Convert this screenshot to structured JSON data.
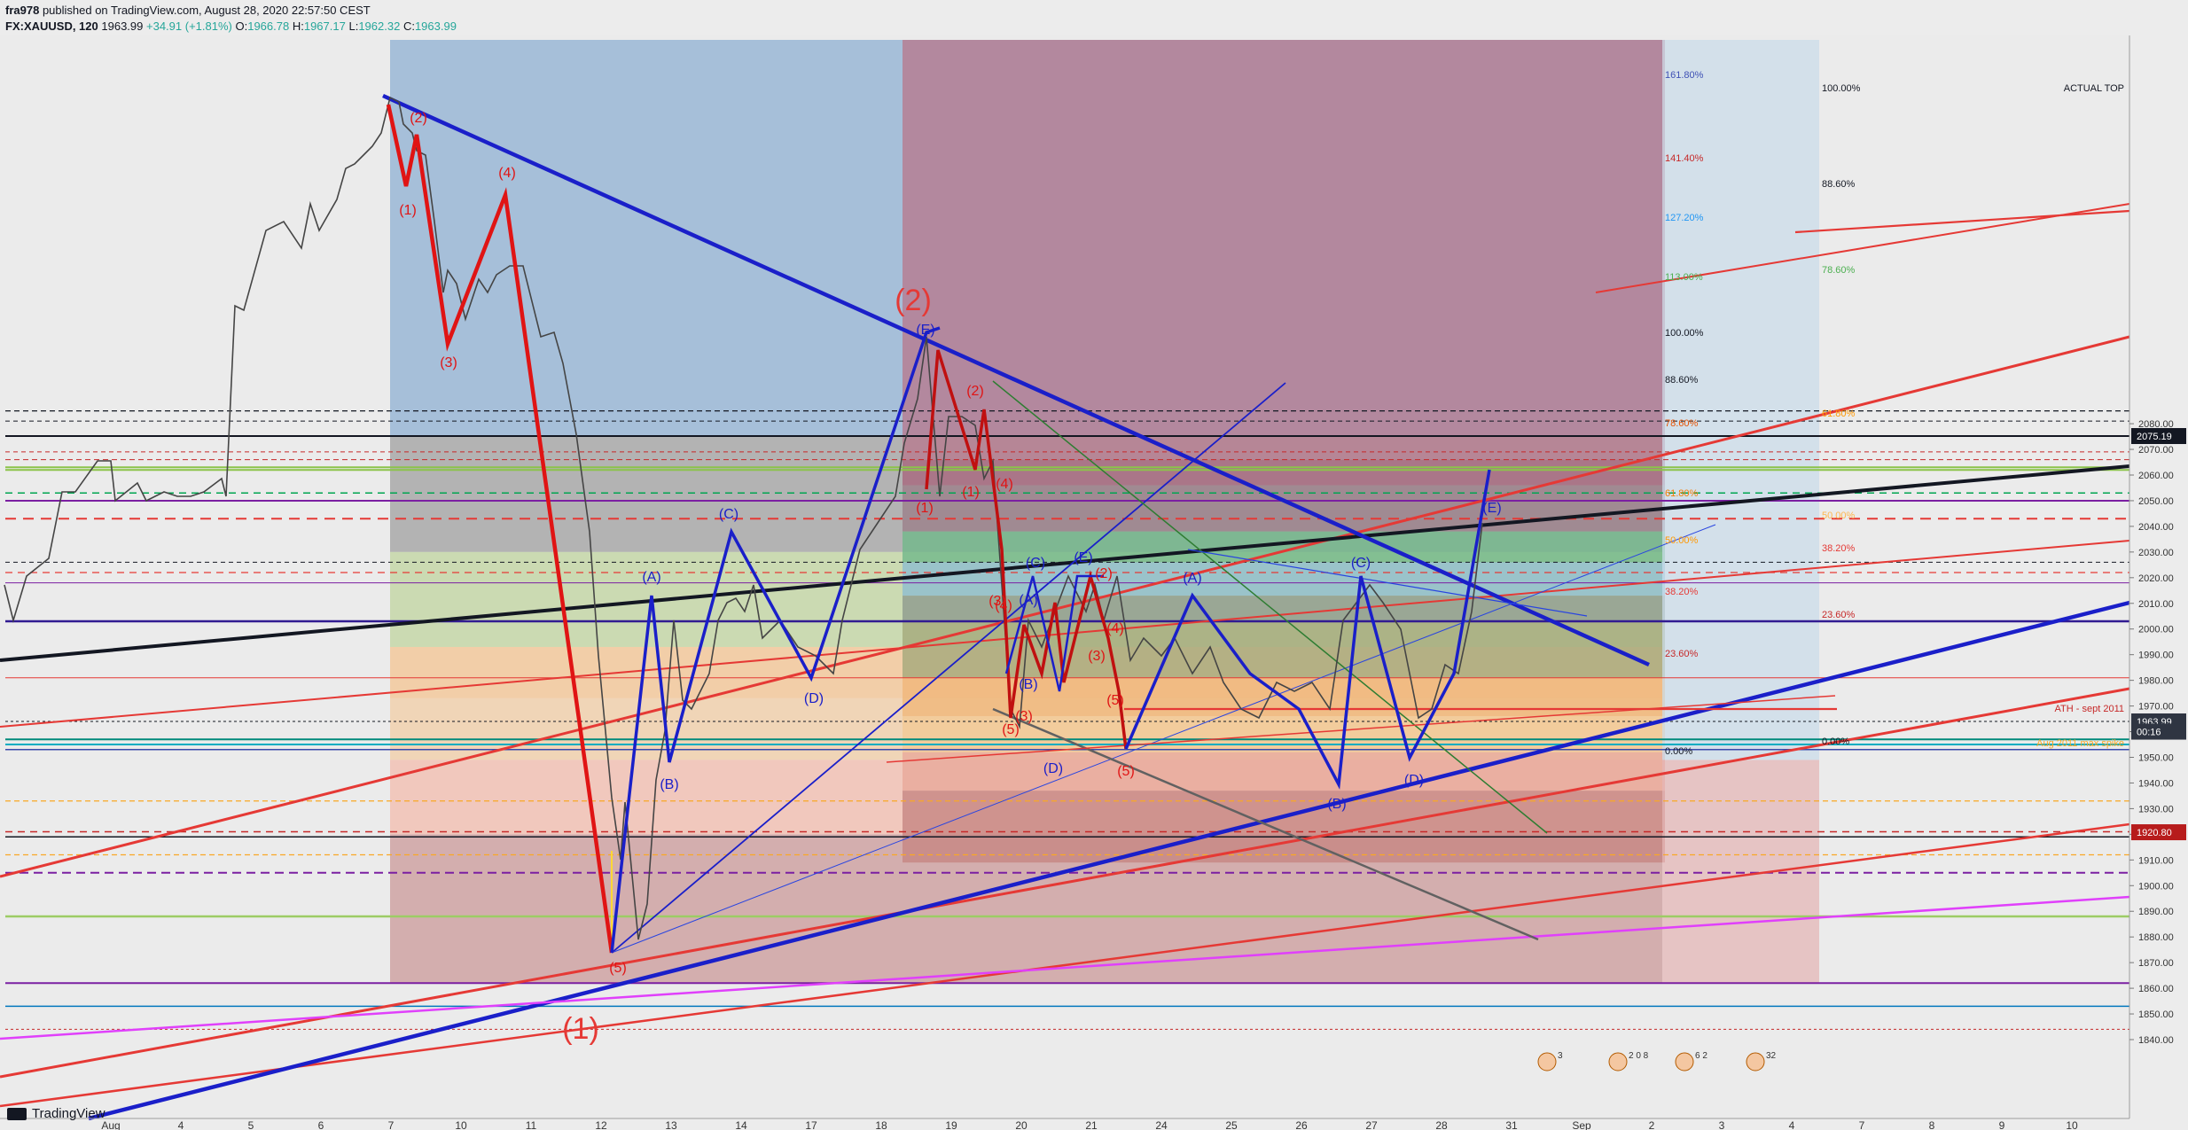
{
  "header": {
    "author": "fra978",
    "published": "published on TradingView.com, August 28, 2020 22:57:50 CEST",
    "symbol": "FX:XAUUSD, 120",
    "last": "1963.99",
    "change": "+34.91 (+1.81%)",
    "o_label": "O:",
    "o": "1966.78",
    "h_label": "H:",
    "h": "1967.17",
    "l_label": "L:",
    "l": "1962.32",
    "c_label": "C:",
    "c": "1963.99"
  },
  "footer": {
    "brand": "TradingView"
  },
  "colors": {
    "up": "#26a69a",
    "down": "#ef5350",
    "bg": "#ececec",
    "accent": "#2196f3"
  },
  "chart_data": {
    "type": "line",
    "title": "",
    "xlabel": "",
    "ylabel": "",
    "ylim": [
      1832,
      2090
    ],
    "x_ticks": [
      "Aug",
      "4",
      "5",
      "6",
      "7",
      "10",
      "11",
      "12",
      "13",
      "14",
      "17",
      "18",
      "19",
      "20",
      "21",
      "24",
      "25",
      "26",
      "27",
      "28",
      "31",
      "Sep",
      "2",
      "3",
      "4",
      "7",
      "8",
      "9",
      "10"
    ],
    "y_ticks": [
      1840,
      1850,
      1860,
      1870,
      1880,
      1890,
      1900,
      1910,
      1920,
      1930,
      1940,
      1950,
      1960,
      1970,
      1980,
      1990,
      2000,
      2010,
      2020,
      2030,
      2040,
      2050,
      2060,
      2070,
      2080
    ],
    "price_labels": [
      {
        "text": "2075.19",
        "value": 2075.19,
        "bg": "#131722"
      },
      {
        "text": "1963.99",
        "value": 1963.99,
        "bg": "#2f3542"
      },
      {
        "text": "00:16",
        "value": 1960,
        "bg": "#2f3542"
      },
      {
        "text": "1920.80",
        "value": 1920.8,
        "bg": "#b71c1c"
      }
    ],
    "annotations": [
      {
        "text": "ACTUAL TOP",
        "color": "#131722"
      },
      {
        "text": "ATH - sept 2011",
        "color": "#c62828"
      },
      {
        "text": "Aug 2011 max spike",
        "color": "#f9a825"
      }
    ],
    "fib_left": [
      {
        "text": "161.80%",
        "color": "#3f51b5"
      },
      {
        "text": "141.40%",
        "color": "#c62828"
      },
      {
        "text": "127.20%",
        "color": "#2196f3"
      },
      {
        "text": "113.00%",
        "color": "#4caf50"
      },
      {
        "text": "100.00%",
        "color": "#131722"
      },
      {
        "text": "88.60%",
        "color": "#131722"
      },
      {
        "text": "78.60%",
        "color": "#e65100"
      },
      {
        "text": "61.80%",
        "color": "#f57c00"
      },
      {
        "text": "50.00%",
        "color": "#ff9800"
      },
      {
        "text": "38.20%",
        "color": "#e53935"
      },
      {
        "text": "23.60%",
        "color": "#c62828"
      },
      {
        "text": "0.00%",
        "color": "#131722"
      }
    ],
    "fib_right": [
      {
        "text": "100.00%",
        "color": "#131722"
      },
      {
        "text": "88.60%",
        "color": "#131722"
      },
      {
        "text": "78.60%",
        "color": "#4caf50"
      },
      {
        "text": "61.80%",
        "color": "#ff9800"
      },
      {
        "text": "50.00%",
        "color": "#ffb74d"
      },
      {
        "text": "38.20%",
        "color": "#e53935"
      },
      {
        "text": "23.60%",
        "color": "#c62828"
      },
      {
        "text": "0.00%",
        "color": "#131722"
      }
    ],
    "waves_red": [
      "(1)",
      "(2)",
      "(3)",
      "(4)",
      "(5)",
      "(1)",
      "(2)",
      "(3)",
      "(4)",
      "(5)",
      "(3)",
      "(4)",
      "(5)",
      "(1)",
      "(2)",
      "(3)",
      "(4)",
      "(5)"
    ],
    "waves_blue": [
      "(A)",
      "(B)",
      "(C)",
      "(D)",
      "(E)",
      "(A)",
      "(B)",
      "(C)",
      "(D)",
      "(E)",
      "(A)",
      "(B)",
      "(C)",
      "(D)",
      "(E)"
    ],
    "big_labels": [
      "(1)",
      "(2)"
    ],
    "events": [
      "3",
      "2 0 8",
      "6 2",
      "32"
    ]
  }
}
